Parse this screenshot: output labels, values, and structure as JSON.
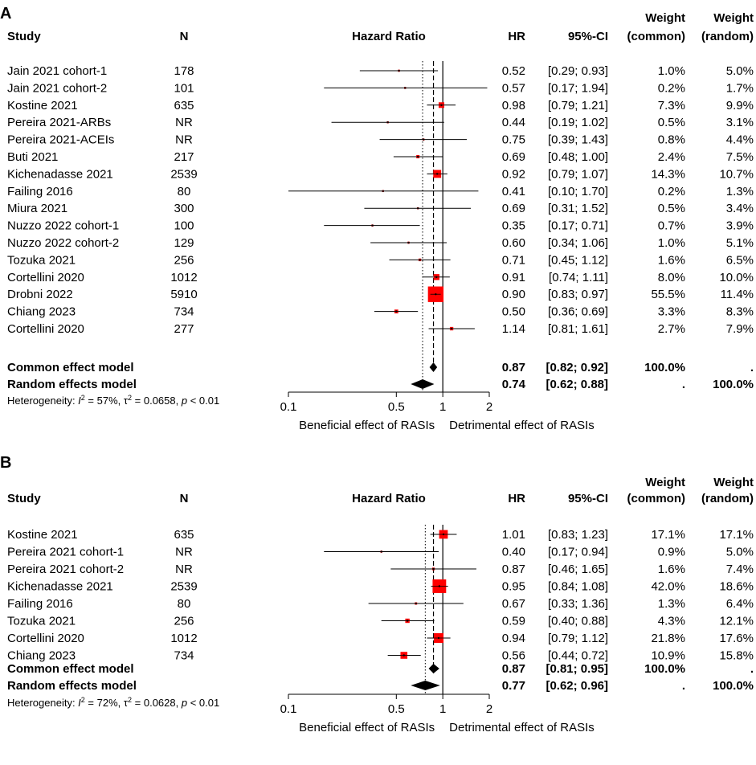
{
  "chart_data": [
    {
      "type": "forest",
      "panel": "A",
      "headers": {
        "study": "Study",
        "n": "N",
        "plot": "Hazard Ratio",
        "hr": "HR",
        "ci": "95%-CI",
        "weight_common": [
          "Weight",
          "(common)"
        ],
        "weight_random": [
          "Weight",
          "(random)"
        ]
      },
      "studies": [
        {
          "name": "Jain 2021 cohort-1",
          "n": "178",
          "hr": 0.52,
          "lo": 0.29,
          "hi": 0.93,
          "hr_text": "0.52",
          "ci_text": "[0.29; 0.93]",
          "wc": "1.0%",
          "wr": "5.0%"
        },
        {
          "name": "Jain 2021 cohort-2",
          "n": "101",
          "hr": 0.57,
          "lo": 0.17,
          "hi": 1.94,
          "hr_text": "0.57",
          "ci_text": "[0.17; 1.94]",
          "wc": "0.2%",
          "wr": "1.7%"
        },
        {
          "name": "Kostine 2021",
          "n": "635",
          "hr": 0.98,
          "lo": 0.79,
          "hi": 1.21,
          "hr_text": "0.98",
          "ci_text": "[0.79; 1.21]",
          "wc": "7.3%",
          "wr": "9.9%"
        },
        {
          "name": "Pereira 2021-ARBs",
          "n": "NR",
          "hr": 0.44,
          "lo": 0.19,
          "hi": 1.02,
          "hr_text": "0.44",
          "ci_text": "[0.19; 1.02]",
          "wc": "0.5%",
          "wr": "3.1%"
        },
        {
          "name": "Pereira 2021-ACEIs",
          "n": "NR",
          "hr": 0.75,
          "lo": 0.39,
          "hi": 1.43,
          "hr_text": "0.75",
          "ci_text": "[0.39; 1.43]",
          "wc": "0.8%",
          "wr": "4.4%"
        },
        {
          "name": "Buti 2021",
          "n": "217",
          "hr": 0.69,
          "lo": 0.48,
          "hi": 1.0,
          "hr_text": "0.69",
          "ci_text": "[0.48; 1.00]",
          "wc": "2.4%",
          "wr": "7.5%"
        },
        {
          "name": "Kichenadasse 2021",
          "n": "2539",
          "hr": 0.92,
          "lo": 0.79,
          "hi": 1.07,
          "hr_text": "0.92",
          "ci_text": "[0.79; 1.07]",
          "wc": "14.3%",
          "wr": "10.7%"
        },
        {
          "name": "Failing 2016",
          "n": "80",
          "hr": 0.41,
          "lo": 0.1,
          "hi": 1.7,
          "hr_text": "0.41",
          "ci_text": "[0.10; 1.70]",
          "wc": "0.2%",
          "wr": "1.3%"
        },
        {
          "name": "Miura 2021",
          "n": "300",
          "hr": 0.69,
          "lo": 0.31,
          "hi": 1.52,
          "hr_text": "0.69",
          "ci_text": "[0.31; 1.52]",
          "wc": "0.5%",
          "wr": "3.4%"
        },
        {
          "name": "Nuzzo 2022 cohort-1",
          "n": "100",
          "hr": 0.35,
          "lo": 0.17,
          "hi": 0.71,
          "hr_text": "0.35",
          "ci_text": "[0.17; 0.71]",
          "wc": "0.7%",
          "wr": "3.9%"
        },
        {
          "name": "Nuzzo 2022 cohort-2",
          "n": "129",
          "hr": 0.6,
          "lo": 0.34,
          "hi": 1.06,
          "hr_text": "0.60",
          "ci_text": "[0.34; 1.06]",
          "wc": "1.0%",
          "wr": "5.1%"
        },
        {
          "name": "Tozuka 2021",
          "n": "256",
          "hr": 0.71,
          "lo": 0.45,
          "hi": 1.12,
          "hr_text": "0.71",
          "ci_text": "[0.45; 1.12]",
          "wc": "1.6%",
          "wr": "6.5%"
        },
        {
          "name": "Cortellini 2020",
          "n": "1012",
          "hr": 0.91,
          "lo": 0.74,
          "hi": 1.11,
          "hr_text": "0.91",
          "ci_text": "[0.74; 1.11]",
          "wc": "8.0%",
          "wr": "10.0%"
        },
        {
          "name": "Drobni 2022",
          "n": "5910",
          "hr": 0.9,
          "lo": 0.83,
          "hi": 0.97,
          "hr_text": "0.90",
          "ci_text": "[0.83; 0.97]",
          "wc": "55.5%",
          "wr": "11.4%"
        },
        {
          "name": "Chiang 2023",
          "n": "734",
          "hr": 0.5,
          "lo": 0.36,
          "hi": 0.69,
          "hr_text": "0.50",
          "ci_text": "[0.36; 0.69]",
          "wc": "3.3%",
          "wr": "8.3%"
        },
        {
          "name": "Cortellini 2020",
          "n": "277",
          "hr": 1.14,
          "lo": 0.81,
          "hi": 1.61,
          "hr_text": "1.14",
          "ci_text": "[0.81; 1.61]",
          "wc": "2.7%",
          "wr": "7.9%"
        }
      ],
      "common": {
        "label": "Common effect model",
        "hr": 0.87,
        "lo": 0.82,
        "hi": 0.92,
        "hr_text": "0.87",
        "ci_text": "[0.82; 0.92]",
        "wc": "100.0%",
        "wr": "."
      },
      "random": {
        "label": "Random effects model",
        "hr": 0.74,
        "lo": 0.62,
        "hi": 0.88,
        "hr_text": "0.74",
        "ci_text": "[0.62; 0.88]",
        "wc": ".",
        "wr": "100.0%"
      },
      "heterogeneity": {
        "prefix": "Heterogeneity: ",
        "i2_sym": "I",
        "i2_exp": "2",
        "i2_val": " = 57%, τ",
        "tau_exp": "2",
        "tau_val": " = 0.0658, ",
        "p_sym": "p",
        "p_val": " < 0.01"
      },
      "x_axis": {
        "scale": "log",
        "ticks": [
          0.1,
          0.5,
          1,
          2
        ],
        "tick_labels": [
          "0.1",
          "0.5",
          "1",
          "2"
        ],
        "range": [
          0.1,
          2
        ]
      },
      "x_labels": {
        "left": "Beneficial effect of RASIs",
        "right": "Detrimental effect of RASIs"
      }
    },
    {
      "type": "forest",
      "panel": "B",
      "headers": {
        "study": "Study",
        "n": "N",
        "plot": "Hazard Ratio",
        "hr": "HR",
        "ci": "95%-CI",
        "weight_common": [
          "Weight",
          "(common)"
        ],
        "weight_random": [
          "Weight",
          "(random)"
        ]
      },
      "studies": [
        {
          "name": "Kostine 2021",
          "n": "635",
          "hr": 1.01,
          "lo": 0.83,
          "hi": 1.23,
          "hr_text": "1.01",
          "ci_text": "[0.83; 1.23]",
          "wc": "17.1%",
          "wr": "17.1%"
        },
        {
          "name": "Pereira 2021 cohort-1",
          "n": "NR",
          "hr": 0.4,
          "lo": 0.17,
          "hi": 0.94,
          "hr_text": "0.40",
          "ci_text": "[0.17; 0.94]",
          "wc": "0.9%",
          "wr": "5.0%"
        },
        {
          "name": "Pereira 2021 cohort-2",
          "n": "NR",
          "hr": 0.87,
          "lo": 0.46,
          "hi": 1.65,
          "hr_text": "0.87",
          "ci_text": "[0.46; 1.65]",
          "wc": "1.6%",
          "wr": "7.4%"
        },
        {
          "name": "Kichenadasse 2021",
          "n": "2539",
          "hr": 0.95,
          "lo": 0.84,
          "hi": 1.08,
          "hr_text": "0.95",
          "ci_text": "[0.84; 1.08]",
          "wc": "42.0%",
          "wr": "18.6%"
        },
        {
          "name": "Failing 2016",
          "n": "80",
          "hr": 0.67,
          "lo": 0.33,
          "hi": 1.36,
          "hr_text": "0.67",
          "ci_text": "[0.33; 1.36]",
          "wc": "1.3%",
          "wr": "6.4%"
        },
        {
          "name": "Tozuka 2021",
          "n": "256",
          "hr": 0.59,
          "lo": 0.4,
          "hi": 0.88,
          "hr_text": "0.59",
          "ci_text": "[0.40; 0.88]",
          "wc": "4.3%",
          "wr": "12.1%"
        },
        {
          "name": "Cortellini 2020",
          "n": "1012",
          "hr": 0.94,
          "lo": 0.79,
          "hi": 1.12,
          "hr_text": "0.94",
          "ci_text": "[0.79; 1.12]",
          "wc": "21.8%",
          "wr": "17.6%"
        },
        {
          "name": "Chiang 2023",
          "n": "734",
          "hr": 0.56,
          "lo": 0.44,
          "hi": 0.72,
          "hr_text": "0.56",
          "ci_text": "[0.44; 0.72]",
          "wc": "10.9%",
          "wr": "15.8%"
        }
      ],
      "common": {
        "label": "Common effect model",
        "hr": 0.87,
        "lo": 0.81,
        "hi": 0.95,
        "hr_text": "0.87",
        "ci_text": "[0.81; 0.95]",
        "wc": "100.0%",
        "wr": "."
      },
      "random": {
        "label": "Random effects model",
        "hr": 0.77,
        "lo": 0.62,
        "hi": 0.96,
        "hr_text": "0.77",
        "ci_text": "[0.62; 0.96]",
        "wc": ".",
        "wr": "100.0%"
      },
      "heterogeneity": {
        "prefix": "Heterogeneity: ",
        "i2_sym": "I",
        "i2_exp": "2",
        "i2_val": " = 72%, τ",
        "tau_exp": "2",
        "tau_val": " = 0.0628, ",
        "p_sym": "p",
        "p_val": " < 0.01"
      },
      "x_axis": {
        "scale": "log",
        "ticks": [
          0.1,
          0.5,
          1,
          2
        ],
        "tick_labels": [
          "0.1",
          "0.5",
          "1",
          "2"
        ],
        "range": [
          0.1,
          2
        ]
      },
      "x_labels": {
        "left": "Beneficial effect of RASIs",
        "right": "Detrimental effect of RASIs"
      }
    }
  ],
  "colors": {
    "square": "#ff0000",
    "line": "#000000",
    "diamond": "#000000",
    "background": "#ffffff"
  }
}
